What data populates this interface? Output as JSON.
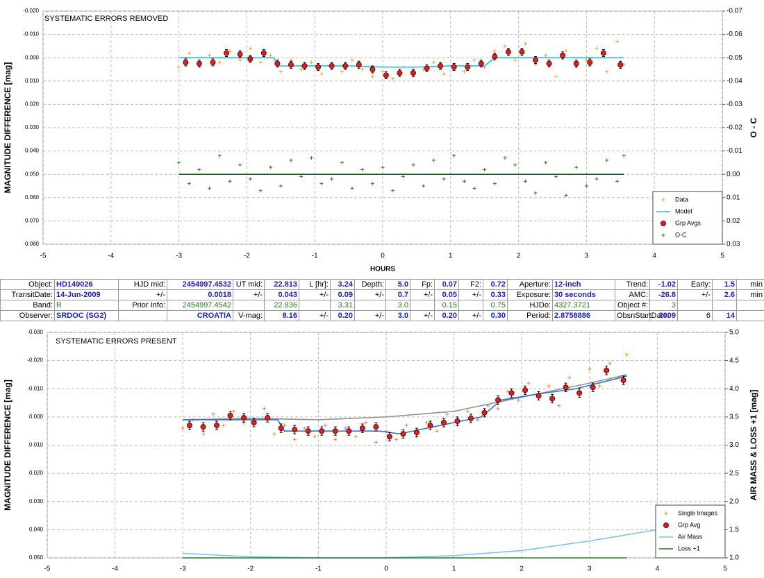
{
  "chart_data": [
    {
      "type": "scatter",
      "annotation": "SYSTEMATIC ERRORS REMOVED",
      "x_label": "HOURS",
      "y_label": "MAGNITUDE DIFFERENCE [mag]",
      "y2_label": "O - C",
      "xlim": [
        -5,
        5
      ],
      "xticks": [
        -5,
        -4,
        -3,
        -2,
        -1,
        0,
        1,
        2,
        3,
        4,
        5
      ],
      "ylim": [
        -0.02,
        0.08
      ],
      "y_inverted": true,
      "yticks": [
        {
          "value": -0.02,
          "label": "-0.020"
        },
        {
          "value": -0.01,
          "label": "-0.010"
        },
        {
          "value": 0,
          "label": "0.000"
        },
        {
          "value": 0.01,
          "label": "0.010"
        },
        {
          "value": 0.02,
          "label": "0.020"
        },
        {
          "value": 0.03,
          "label": "0.030"
        },
        {
          "value": 0.04,
          "label": "0.040"
        },
        {
          "value": 0.05,
          "label": "0.050"
        },
        {
          "value": 0.06,
          "label": "0.060"
        },
        {
          "value": 0.07,
          "label": "0.070"
        },
        {
          "value": 0.08,
          "label": "0.080"
        }
      ],
      "y2lim": [
        -0.07,
        0.03
      ],
      "y2_inverted": true,
      "y2ticks": [
        -0.07,
        -0.06,
        -0.05,
        -0.04,
        -0.03,
        -0.02,
        -0.01,
        {
          "value": 0,
          "label": "0.00"
        },
        0.01,
        0.02,
        0.03
      ],
      "grid": true,
      "legend": "lower right",
      "series": [
        {
          "name": "Data",
          "color": "#f0a020",
          "marker": "plus",
          "x": [
            -3,
            -2.85,
            -2.7,
            -2.55,
            -2.4,
            -2.25,
            -2.1,
            -1.95,
            -1.8,
            -1.65,
            -1.5,
            -1.35,
            -1.2,
            -1.05,
            -0.9,
            -0.75,
            -0.6,
            -0.45,
            -0.3,
            -0.15,
            0,
            0.15,
            0.3,
            0.45,
            0.6,
            0.75,
            0.9,
            1.05,
            1.2,
            1.35,
            1.5,
            1.65,
            1.8,
            1.95,
            2.1,
            2.25,
            2.4,
            2.55,
            2.7,
            2.85,
            3,
            3.15,
            3.3,
            3.45,
            3.55
          ],
          "values": [
            0.004,
            -0.002,
            0.003,
            -0.001,
            0.002,
            -0.003,
            0.001,
            -0.004,
            0.002,
            -0.001,
            0.006,
            0.001,
            0.005,
            0.002,
            0.007,
            0.003,
            0.006,
            0.001,
            0.005,
            0.008,
            0.006,
            0.009,
            0.004,
            0.008,
            0.005,
            0.002,
            0.007,
            0.003,
            0.006,
            0.001,
            0.004,
            -0.003,
            -0.005,
            0.001,
            -0.006,
            0.003,
            -0.001,
            0.008,
            -0.003,
            0.004,
            0.001,
            -0.004,
            0.006,
            -0.007,
            0.003
          ]
        },
        {
          "name": "Model",
          "color": "#20c0e8",
          "marker": "line",
          "x": [
            -3,
            -1.6,
            -1.55,
            -0.5,
            0,
            0.5,
            1,
            1.5,
            1.65,
            2,
            3.55
          ],
          "values": [
            0,
            0,
            0.0035,
            0.0035,
            0.004,
            0.004,
            0.0035,
            0.0035,
            0,
            0,
            0
          ]
        },
        {
          "name": "Grp Avgs",
          "color": "#e02020",
          "marker": "circle",
          "x": [
            -2.9,
            -2.7,
            -2.5,
            -2.3,
            -2.1,
            -1.95,
            -1.75,
            -1.55,
            -1.35,
            -1.15,
            -0.95,
            -0.75,
            -0.55,
            -0.35,
            -0.15,
            0.05,
            0.25,
            0.45,
            0.65,
            0.85,
            1.05,
            1.25,
            1.45,
            1.65,
            1.85,
            2.05,
            2.25,
            2.45,
            2.65,
            2.85,
            3.05,
            3.25,
            3.5
          ],
          "values": [
            0.002,
            0.0025,
            0.002,
            -0.002,
            -0.0015,
            0.0005,
            -0.002,
            0.0025,
            0.003,
            0.0035,
            0.004,
            0.0035,
            0.0035,
            0.003,
            0.005,
            0.0075,
            0.0065,
            0.0065,
            0.0045,
            0.0035,
            0.004,
            0.004,
            0.0025,
            -0.0005,
            -0.0025,
            -0.0025,
            0.001,
            0.0025,
            -0.001,
            0.0025,
            0.002,
            -0.002,
            0.003
          ],
          "errors": [
            0.0015,
            0.0015,
            0.0015,
            0.0015,
            0.0015,
            0.0015,
            0.0015,
            0.0015,
            0.0015,
            0.0015,
            0.0015,
            0.0015,
            0.0015,
            0.0015,
            0.0015,
            0.0015,
            0.0015,
            0.0015,
            0.0015,
            0.0015,
            0.0015,
            0.0015,
            0.0015,
            0.0015,
            0.0015,
            0.0015,
            0.0015,
            0.0015,
            0.0015,
            0.0015,
            0.0015,
            0.0015,
            0.0015
          ]
        },
        {
          "name": "O-C",
          "color": "#208020",
          "marker": "plus",
          "axis": "y2",
          "x": [
            -3,
            -2.85,
            -2.7,
            -2.55,
            -2.4,
            -2.25,
            -2.1,
            -1.95,
            -1.8,
            -1.65,
            -1.5,
            -1.35,
            -1.2,
            -1.05,
            -0.9,
            -0.75,
            -0.6,
            -0.45,
            -0.3,
            -0.15,
            0,
            0.15,
            0.3,
            0.45,
            0.6,
            0.75,
            0.9,
            1.05,
            1.2,
            1.35,
            1.5,
            1.65,
            1.8,
            1.95,
            2.1,
            2.25,
            2.4,
            2.55,
            2.7,
            2.85,
            3,
            3.15,
            3.3,
            3.45,
            3.55
          ],
          "values": [
            -0.005,
            0.004,
            -0.002,
            0.006,
            -0.008,
            0.003,
            -0.004,
            0.002,
            0.007,
            -0.003,
            0.005,
            -0.006,
            0.001,
            -0.007,
            0.004,
            0.002,
            -0.005,
            0.006,
            -0.002,
            0.004,
            -0.003,
            0.007,
            0.001,
            -0.004,
            0.005,
            -0.006,
            0.002,
            -0.008,
            0.003,
            0.006,
            -0.002,
            0.004,
            -0.007,
            -0.004,
            0.003,
            0.008,
            -0.005,
            0.001,
            0.009,
            -0.003,
            0.005,
            0.002,
            -0.006,
            0.003,
            -0.008
          ]
        },
        {
          "color": "#206020",
          "marker": "line",
          "axis": "y2",
          "x": [
            -3,
            3.55
          ],
          "values": [
            0,
            0
          ]
        }
      ]
    },
    {
      "type": "scatter",
      "annotation": "SYSTEMATIC ERRORS PRESENT",
      "y_label": "MAGNITUDE DIFFERENCE [mag]",
      "y2_label": "AIR MASS & LOSS +1 [mag]",
      "xlim": [
        -5,
        5
      ],
      "xticks": [
        -5,
        -4,
        -3,
        -2,
        -1,
        0,
        1,
        2,
        3,
        4,
        5
      ],
      "ylim": [
        -0.03,
        0.05
      ],
      "y_inverted": true,
      "yticks": [
        {
          "value": -0.03,
          "label": "-0.030"
        },
        {
          "value": -0.02,
          "label": "-0.020"
        },
        {
          "value": -0.01,
          "label": "-0.010"
        },
        {
          "value": 0,
          "label": "0.000"
        },
        {
          "value": 0.01,
          "label": "0.010"
        },
        {
          "value": 0.02,
          "label": "0.020"
        },
        {
          "value": 0.03,
          "label": "0.030"
        },
        {
          "value": 0.04,
          "label": "0.040"
        },
        {
          "value": 0.05,
          "label": "0.050"
        }
      ],
      "y2lim": [
        1,
        5
      ],
      "y2_inverted": false,
      "y2ticks": [
        {
          "value": 1,
          "label": "1.0"
        },
        1.5,
        {
          "value": 2,
          "label": "2.0"
        },
        2.5,
        {
          "value": 3,
          "label": "3.0"
        },
        3.5,
        {
          "value": 4,
          "label": "4.0"
        },
        4.5,
        {
          "value": 5,
          "label": "5.0"
        }
      ],
      "grid": true,
      "legend": "lower right",
      "series": [
        {
          "name": "Single Images",
          "color": "#f08020",
          "marker": "plus",
          "x": [
            -3,
            -2.85,
            -2.7,
            -2.55,
            -2.4,
            -2.25,
            -2.1,
            -1.95,
            -1.8,
            -1.65,
            -1.5,
            -1.35,
            -1.2,
            -1.05,
            -0.9,
            -0.75,
            -0.6,
            -0.45,
            -0.3,
            -0.15,
            0,
            0.15,
            0.3,
            0.45,
            0.6,
            0.75,
            0.9,
            1.05,
            1.2,
            1.35,
            1.5,
            1.65,
            1.8,
            1.95,
            2.1,
            2.25,
            2.4,
            2.55,
            2.7,
            2.85,
            3,
            3.15,
            3.3,
            3.45,
            3.55
          ],
          "values": [
            0.004,
            0.001,
            0.006,
            -0.001,
            0.003,
            -0.002,
            0.002,
            0.001,
            -0.003,
            0.006,
            0.003,
            0.008,
            0.004,
            0.007,
            0.003,
            0.008,
            0.004,
            0.007,
            0.002,
            0.009,
            0.005,
            0.008,
            0.003,
            0.007,
            0.002,
            0.005,
            -0.001,
            0.003,
            -0.002,
            0.001,
            -0.004,
            -0.003,
            -0.009,
            -0.006,
            -0.012,
            -0.007,
            -0.011,
            -0.004,
            -0.014,
            -0.008,
            -0.017,
            -0.011,
            -0.019,
            -0.014,
            -0.022
          ]
        },
        {
          "color": "#909090",
          "marker": "line",
          "x": [
            -3,
            -2,
            -1,
            0,
            1,
            2,
            3,
            3.55
          ],
          "values": [
            0.001,
            0.0005,
            0.001,
            0,
            -0.002,
            -0.007,
            -0.012,
            -0.015
          ]
        },
        {
          "color": "#3070d0",
          "marker": "line",
          "x": [
            -3,
            -1.6,
            -1.5,
            -0.1,
            0.2,
            0.6,
            1,
            1.4,
            1.7,
            2.2,
            2.8,
            3.3,
            3.55
          ],
          "values": [
            0.001,
            0.001,
            0.005,
            0.005,
            0.006,
            0.004,
            0.002,
            0,
            -0.006,
            -0.008,
            -0.01,
            -0.013,
            -0.0145
          ]
        },
        {
          "name": "Grp Avg",
          "color": "#e02020",
          "marker": "circle",
          "x": [
            -2.9,
            -2.7,
            -2.5,
            -2.3,
            -2.1,
            -1.95,
            -1.75,
            -1.55,
            -1.35,
            -1.15,
            -0.95,
            -0.75,
            -0.55,
            -0.35,
            -0.15,
            0.05,
            0.25,
            0.45,
            0.65,
            0.85,
            1.05,
            1.25,
            1.45,
            1.65,
            1.85,
            2.05,
            2.25,
            2.45,
            2.65,
            2.85,
            3.05,
            3.25,
            3.5
          ],
          "values": [
            0.003,
            0.0035,
            0.003,
            -0.0005,
            0.0003,
            0.002,
            0.0003,
            0.004,
            0.0045,
            0.005,
            0.005,
            0.005,
            0.005,
            0.004,
            0.0035,
            0.007,
            0.006,
            0.0055,
            0.003,
            0.002,
            0.0015,
            0.0005,
            -0.0015,
            -0.006,
            -0.0085,
            -0.0095,
            -0.0075,
            -0.0065,
            -0.0105,
            -0.0085,
            -0.0105,
            -0.0165,
            -0.013
          ],
          "errors": [
            0.0015,
            0.0015,
            0.0015,
            0.0015,
            0.0015,
            0.0015,
            0.0015,
            0.0015,
            0.0015,
            0.0015,
            0.0015,
            0.0015,
            0.0015,
            0.0015,
            0.0015,
            0.0015,
            0.0015,
            0.0015,
            0.0015,
            0.0015,
            0.0015,
            0.0015,
            0.0015,
            0.0015,
            0.0015,
            0.0015,
            0.0015,
            0.0015,
            0.0015,
            0.0015,
            0.0015,
            0.0015,
            0.0015
          ]
        },
        {
          "name": "Air Mass",
          "color": "#70c8e8",
          "marker": "line",
          "axis": "y2",
          "x": [
            -3,
            -2,
            -1,
            0,
            1,
            2,
            3,
            4
          ],
          "values": [
            1.08,
            1.02,
            1,
            1,
            1.04,
            1.13,
            1.3,
            1.5
          ]
        },
        {
          "name": "Loss +1",
          "color": "#208020",
          "marker": "line",
          "axis": "y2",
          "x": [
            -3,
            3.55
          ],
          "values": [
            1,
            1
          ]
        }
      ]
    }
  ],
  "table": {
    "rows": [
      [
        "Object:",
        "HD149026",
        "HJD mid:",
        "2454997.4532",
        "UT mid:",
        "22.813",
        "L [hr]:",
        "3.24",
        "Depth:",
        "5.0",
        "Fp:",
        "0.07",
        "F2:",
        "0.72",
        "Aperture:",
        "12-inch",
        "Trend:",
        "-1.02",
        "Early:",
        "1.5",
        "min"
      ],
      [
        "TransitDate:",
        "14-Jun-2009",
        "+/-",
        "0.0018",
        "+/-",
        "0.043",
        "+/-",
        "0.09",
        "+/-",
        "0.7",
        "+/-",
        "0.05",
        "+/-",
        "0.33",
        "Exposure:",
        "30 seconds",
        "AMC:",
        "-26.8",
        "+/-",
        "2.6",
        "min"
      ],
      [
        "Band:",
        "R",
        "Prior Info:",
        "2454997.4542",
        null,
        "22.836",
        null,
        "3.31",
        null,
        "3.0",
        null,
        "0.15",
        null,
        "0.75",
        "HJDo:",
        "4327.3721",
        "Object #:",
        "3",
        null,
        null,
        null
      ],
      [
        "Observer:",
        "SRDOC (SG2)",
        null,
        "CROATIA",
        "V-mag:",
        "8.16",
        "+/-",
        "0.20",
        "+/-",
        "3.0",
        "+/-",
        "0.20",
        "+/-",
        "0.30",
        "Period:",
        "2.8758886",
        "ObsnStartDate:",
        "2009",
        "6",
        "14",
        null
      ]
    ]
  }
}
